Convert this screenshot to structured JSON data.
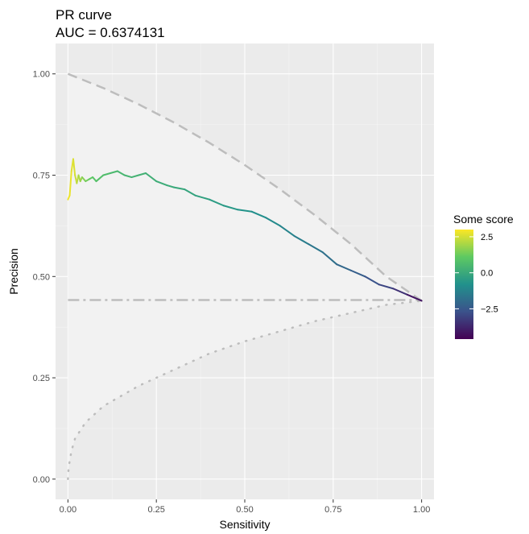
{
  "chart_data": {
    "type": "line",
    "title": "PR curve",
    "subtitle": "AUC = 0.6374131",
    "xlabel": "Sensitivity",
    "ylabel": "Precision",
    "xlim": [
      -0.035,
      1.035
    ],
    "ylim": [
      -0.05,
      1.075
    ],
    "x_ticks": [
      0.0,
      0.25,
      0.5,
      0.75,
      1.0
    ],
    "x_tick_labels": [
      "0.00",
      "0.25",
      "0.50",
      "0.75",
      "1.00"
    ],
    "y_ticks": [
      0.0,
      0.25,
      0.5,
      0.75,
      1.0
    ],
    "y_tick_labels": [
      "0.00",
      "0.25",
      "0.50",
      "0.75",
      "1.00"
    ],
    "grid": true,
    "background": "#ebebeb",
    "legend": {
      "title": "Some score",
      "position": "right",
      "range": [
        -4.6,
        3.0
      ],
      "ticks": [
        2.5,
        0.0,
        -2.5
      ],
      "tick_labels": [
        "2.5",
        "0.0",
        "−2.5"
      ],
      "palette": [
        "#440154",
        "#3b528b",
        "#21918c",
        "#5ec962",
        "#fde725"
      ]
    },
    "series": [
      {
        "type": "line",
        "colored_by": "Some score",
        "x": [
          0.0,
          0.005,
          0.01,
          0.015,
          0.02,
          0.025,
          0.03,
          0.035,
          0.04,
          0.05,
          0.06,
          0.07,
          0.08,
          0.1,
          0.12,
          0.14,
          0.16,
          0.18,
          0.2,
          0.22,
          0.25,
          0.28,
          0.3,
          0.33,
          0.36,
          0.4,
          0.44,
          0.48,
          0.52,
          0.56,
          0.6,
          0.64,
          0.68,
          0.72,
          0.76,
          0.8,
          0.84,
          0.88,
          0.92,
          0.96,
          1.0
        ],
        "y": [
          0.69,
          0.7,
          0.76,
          0.79,
          0.75,
          0.73,
          0.75,
          0.735,
          0.745,
          0.735,
          0.74,
          0.745,
          0.735,
          0.75,
          0.755,
          0.76,
          0.75,
          0.745,
          0.75,
          0.755,
          0.735,
          0.725,
          0.72,
          0.715,
          0.7,
          0.69,
          0.675,
          0.665,
          0.66,
          0.645,
          0.625,
          0.6,
          0.58,
          0.56,
          0.53,
          0.515,
          0.5,
          0.48,
          0.47,
          0.455,
          0.44
        ],
        "score": [
          2.9,
          2.8,
          2.7,
          2.65,
          2.5,
          2.3,
          2.1,
          1.9,
          1.7,
          1.4,
          1.2,
          1.0,
          0.85,
          0.7,
          0.6,
          0.5,
          0.4,
          0.35,
          0.3,
          0.25,
          0.15,
          0.08,
          0.0,
          -0.1,
          -0.2,
          -0.35,
          -0.5,
          -0.65,
          -0.8,
          -0.95,
          -1.1,
          -1.3,
          -1.5,
          -1.7,
          -1.95,
          -2.2,
          -2.5,
          -2.8,
          -3.2,
          -3.7,
          -4.5
        ]
      },
      {
        "type": "line",
        "style": "dashed",
        "color": "#bdbdbd",
        "x": [
          0.0,
          0.1,
          0.2,
          0.3,
          0.4,
          0.5,
          0.6,
          0.7,
          0.8,
          0.9,
          0.95,
          1.0
        ],
        "y": [
          1.0,
          0.965,
          0.925,
          0.88,
          0.83,
          0.775,
          0.715,
          0.65,
          0.58,
          0.5,
          0.47,
          0.44
        ]
      },
      {
        "type": "line",
        "style": "dotted",
        "color": "#bdbdbd",
        "x": [
          0.0,
          0.002,
          0.01,
          0.02,
          0.05,
          0.1,
          0.2,
          0.3,
          0.4,
          0.5,
          0.6,
          0.7,
          0.8,
          0.9,
          1.0
        ],
        "y": [
          0.0,
          0.03,
          0.07,
          0.1,
          0.14,
          0.18,
          0.23,
          0.27,
          0.31,
          0.34,
          0.365,
          0.39,
          0.41,
          0.43,
          0.44
        ]
      },
      {
        "type": "line",
        "style": "dotdash",
        "color": "#bdbdbd",
        "x": [
          0.0,
          1.0
        ],
        "y": [
          0.442,
          0.442
        ]
      }
    ]
  }
}
